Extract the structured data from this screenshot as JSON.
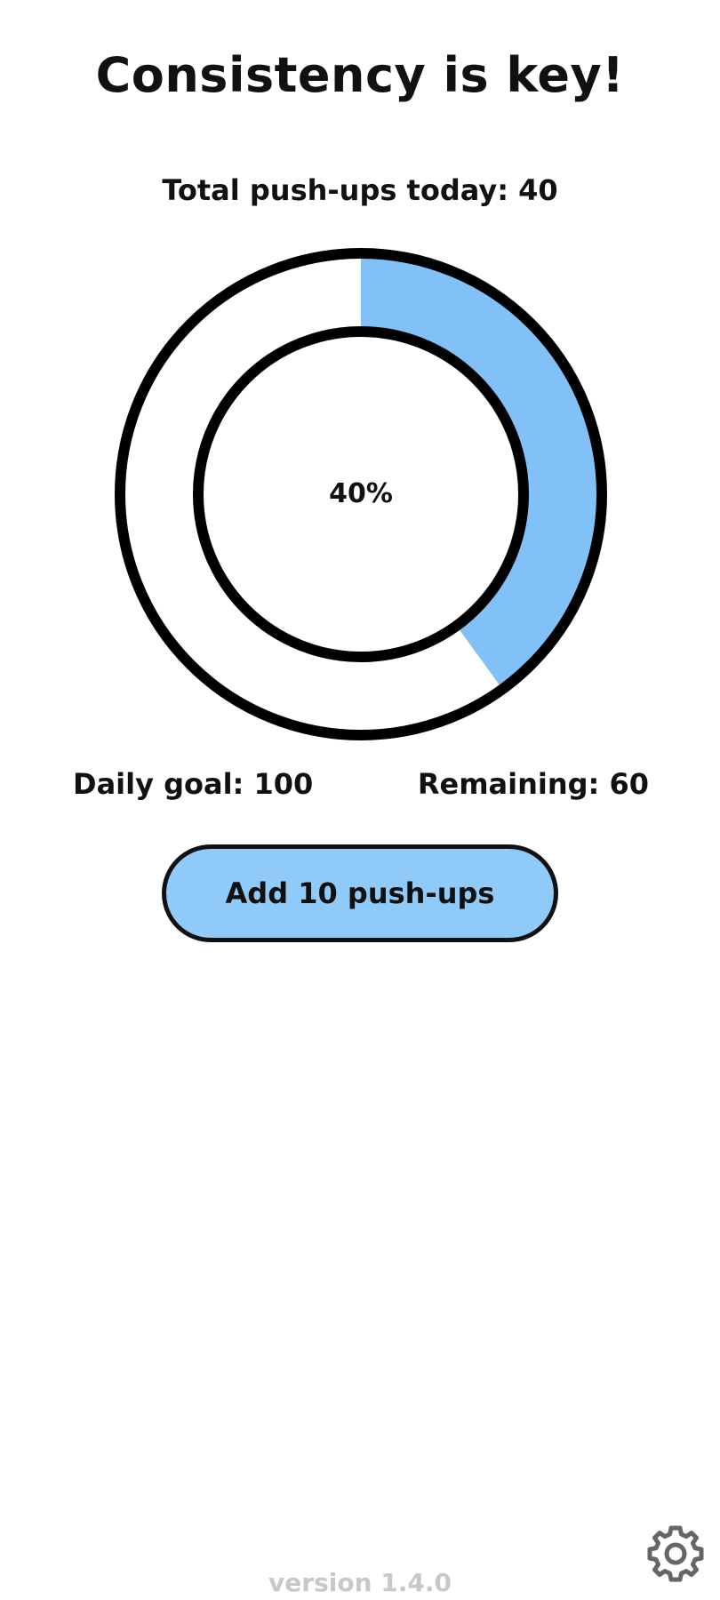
{
  "header": {
    "title": "Consistency is key!"
  },
  "stats": {
    "total_label": "Total push-ups today: 40",
    "total_count": 40,
    "daily_goal_label": "Daily goal: 100",
    "daily_goal": 100,
    "remaining_label": "Remaining: 60",
    "remaining": 60
  },
  "progress": {
    "percent_label": "40%",
    "fraction": 0.4,
    "fill_color": "#82c1f7",
    "ring_color": "#000000"
  },
  "actions": {
    "add_button_label": "Add 10 push-ups",
    "add_button_color": "#90caf9"
  },
  "footer": {
    "version": "version 1.4.0",
    "settings_icon": "gear-icon"
  }
}
